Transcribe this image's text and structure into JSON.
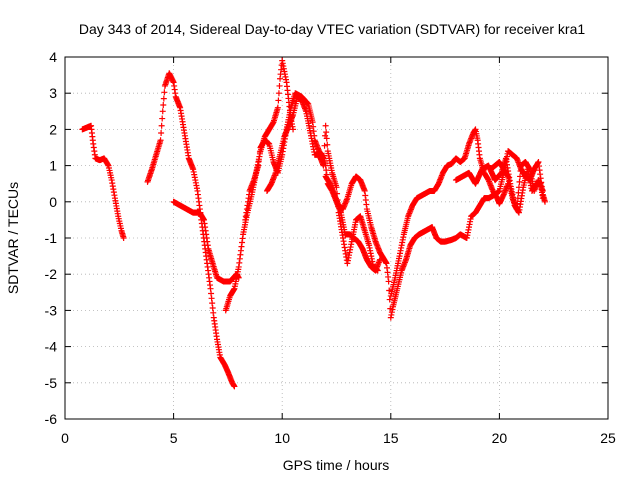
{
  "chart_data": {
    "type": "scatter",
    "title": "Day 343 of 2014, Sidereal Day-to-day VTEC variation (SDTVAR) for receiver kra1",
    "xlabel": "GPS time / hours",
    "ylabel": "SDTVAR / TECUs",
    "xlim": [
      0,
      25
    ],
    "ylim": [
      -6,
      4
    ],
    "xticks": [
      "0",
      "5",
      "10",
      "15",
      "20",
      "25"
    ],
    "yticks": [
      "-6",
      "-5",
      "-4",
      "-3",
      "-2",
      "-1",
      "0",
      "1",
      "2",
      "3",
      "4"
    ],
    "grid": true,
    "marker": "+",
    "color": "#ff0000",
    "series": [
      {
        "name": "SDTVAR",
        "segments": [
          [
            [
              0.8,
              2.0
            ],
            [
              1.0,
              2.05
            ],
            [
              1.2,
              2.1
            ],
            [
              1.3,
              1.6
            ],
            [
              1.4,
              1.2
            ],
            [
              1.6,
              1.15
            ],
            [
              1.8,
              1.2
            ],
            [
              2.0,
              1.0
            ],
            [
              2.15,
              0.6
            ],
            [
              2.3,
              0.1
            ],
            [
              2.45,
              -0.4
            ],
            [
              2.6,
              -0.8
            ],
            [
              2.7,
              -1.0
            ]
          ],
          [
            [
              3.8,
              0.55
            ],
            [
              4.0,
              0.9
            ],
            [
              4.2,
              1.3
            ],
            [
              4.4,
              1.7
            ],
            [
              4.5,
              2.5
            ],
            [
              4.6,
              3.2
            ],
            [
              4.8,
              3.55
            ],
            [
              5.0,
              3.3
            ],
            [
              5.1,
              2.9
            ],
            [
              5.3,
              2.6
            ],
            [
              5.5,
              1.9
            ],
            [
              5.7,
              1.2
            ],
            [
              5.9,
              0.9
            ],
            [
              6.1,
              0.3
            ],
            [
              6.3,
              -0.6
            ],
            [
              6.5,
              -1.5
            ],
            [
              6.7,
              -2.4
            ],
            [
              6.85,
              -3.2
            ],
            [
              7.0,
              -3.8
            ],
            [
              7.15,
              -4.3
            ],
            [
              7.35,
              -4.5
            ],
            [
              7.5,
              -4.7
            ],
            [
              7.7,
              -5.0
            ],
            [
              7.8,
              -5.1
            ]
          ],
          [
            [
              5.0,
              0.0
            ],
            [
              5.3,
              -0.1
            ],
            [
              5.6,
              -0.2
            ],
            [
              5.9,
              -0.3
            ],
            [
              6.2,
              -0.3
            ],
            [
              6.4,
              -0.5
            ],
            [
              6.6,
              -1.3
            ],
            [
              6.8,
              -1.7
            ],
            [
              7.0,
              -2.1
            ],
            [
              7.3,
              -2.2
            ],
            [
              7.6,
              -2.2
            ],
            [
              7.9,
              -2.0
            ],
            [
              8.0,
              -2.1
            ]
          ],
          [
            [
              7.4,
              -3.0
            ],
            [
              7.6,
              -2.6
            ],
            [
              7.8,
              -2.4
            ],
            [
              8.0,
              -1.8
            ],
            [
              8.2,
              -0.9
            ],
            [
              8.4,
              -0.3
            ],
            [
              8.6,
              0.2
            ],
            [
              8.8,
              0.8
            ],
            [
              9.0,
              1.4
            ],
            [
              9.2,
              1.8
            ],
            [
              9.4,
              2.0
            ],
            [
              9.6,
              2.2
            ],
            [
              9.8,
              2.6
            ],
            [
              9.9,
              3.4
            ],
            [
              10.0,
              3.9
            ],
            [
              10.2,
              3.3
            ],
            [
              10.4,
              2.3
            ],
            [
              10.5,
              2.0
            ]
          ],
          [
            [
              8.3,
              -0.5
            ],
            [
              8.5,
              0.3
            ],
            [
              8.7,
              0.6
            ],
            [
              8.9,
              1.0
            ],
            [
              9.0,
              1.5
            ],
            [
              9.2,
              1.7
            ],
            [
              9.4,
              1.6
            ],
            [
              9.6,
              1.1
            ],
            [
              9.8,
              0.8
            ],
            [
              10.0,
              1.3
            ],
            [
              10.2,
              2.0
            ],
            [
              10.4,
              2.6
            ],
            [
              10.6,
              3.0
            ],
            [
              10.9,
              2.9
            ],
            [
              11.2,
              2.7
            ],
            [
              11.4,
              2.2
            ],
            [
              11.5,
              1.7
            ],
            [
              11.7,
              1.4
            ],
            [
              11.9,
              1.2
            ],
            [
              12.0,
              1.0
            ],
            [
              12.1,
              0.5
            ],
            [
              12.3,
              0.3
            ],
            [
              12.5,
              0.0
            ],
            [
              12.7,
              -0.3
            ],
            [
              12.9,
              -0.9
            ],
            [
              13.1,
              -0.9
            ],
            [
              13.3,
              -1.0
            ],
            [
              13.5,
              -1.1
            ],
            [
              13.7,
              -1.3
            ],
            [
              13.9,
              -1.6
            ],
            [
              14.1,
              -1.8
            ],
            [
              14.3,
              -1.9
            ],
            [
              14.5,
              -1.6
            ]
          ],
          [
            [
              9.3,
              0.3
            ],
            [
              9.5,
              0.5
            ],
            [
              9.7,
              0.8
            ],
            [
              9.9,
              1.3
            ],
            [
              10.1,
              1.8
            ],
            [
              10.3,
              2.1
            ],
            [
              10.5,
              2.4
            ],
            [
              10.7,
              2.9
            ],
            [
              10.9,
              2.8
            ],
            [
              11.1,
              2.5
            ],
            [
              11.3,
              1.9
            ],
            [
              11.5,
              1.3
            ],
            [
              11.7,
              1.3
            ],
            [
              11.9,
              1.0
            ],
            [
              12.0,
              2.1
            ],
            [
              12.1,
              1.4
            ],
            [
              12.3,
              0.8
            ],
            [
              12.5,
              0.4
            ],
            [
              12.6,
              -0.3
            ],
            [
              12.8,
              -1.0
            ],
            [
              13.0,
              -1.7
            ],
            [
              13.2,
              -1.1
            ],
            [
              13.4,
              -0.5
            ],
            [
              13.6,
              -0.4
            ],
            [
              13.8,
              -0.8
            ],
            [
              14.0,
              -1.2
            ],
            [
              14.2,
              -1.8
            ],
            [
              14.4,
              -1.9
            ]
          ],
          [
            [
              12.0,
              0.7
            ],
            [
              12.2,
              0.5
            ],
            [
              12.4,
              0.2
            ],
            [
              12.6,
              -0.1
            ],
            [
              12.8,
              -0.2
            ],
            [
              13.0,
              0.1
            ],
            [
              13.2,
              0.5
            ],
            [
              13.4,
              0.7
            ],
            [
              13.6,
              0.6
            ],
            [
              13.8,
              0.3
            ],
            [
              13.9,
              -0.2
            ],
            [
              14.1,
              -0.7
            ],
            [
              14.3,
              -1.1
            ],
            [
              14.5,
              -1.4
            ],
            [
              14.6,
              -1.5
            ],
            [
              14.8,
              -1.7
            ],
            [
              14.9,
              -2.2
            ],
            [
              15.0,
              -3.2
            ],
            [
              15.1,
              -2.9
            ],
            [
              15.3,
              -2.4
            ],
            [
              15.5,
              -1.9
            ],
            [
              15.7,
              -1.6
            ],
            [
              15.9,
              -1.2
            ],
            [
              16.1,
              -1.0
            ],
            [
              16.3,
              -0.9
            ],
            [
              16.6,
              -0.8
            ],
            [
              16.9,
              -0.7
            ]
          ],
          [
            [
              15.0,
              -2.6
            ],
            [
              15.2,
              -2.1
            ],
            [
              15.4,
              -1.5
            ],
            [
              15.6,
              -0.9
            ],
            [
              15.8,
              -0.4
            ],
            [
              16.0,
              -0.1
            ],
            [
              16.2,
              0.1
            ],
            [
              16.5,
              0.2
            ],
            [
              16.8,
              0.3
            ],
            [
              17.0,
              0.3
            ],
            [
              17.2,
              0.5
            ],
            [
              17.4,
              0.8
            ],
            [
              17.6,
              1.0
            ],
            [
              17.8,
              1.05
            ],
            [
              18.0,
              1.2
            ],
            [
              18.2,
              1.1
            ],
            [
              18.4,
              1.2
            ],
            [
              18.6,
              1.6
            ],
            [
              18.8,
              1.9
            ],
            [
              18.9,
              2.0
            ],
            [
              19.0,
              1.7
            ],
            [
              19.1,
              1.2
            ],
            [
              19.3,
              0.8
            ],
            [
              19.5,
              0.6
            ],
            [
              19.7,
              0.3
            ],
            [
              19.9,
              0.1
            ],
            [
              20.0,
              -0.05
            ],
            [
              20.2,
              0.2
            ],
            [
              20.4,
              0.5
            ]
          ],
          [
            [
              16.9,
              -0.7
            ],
            [
              17.1,
              -1.0
            ],
            [
              17.3,
              -1.1
            ],
            [
              17.5,
              -1.1
            ],
            [
              17.8,
              -1.05
            ],
            [
              18.0,
              -1.0
            ],
            [
              18.2,
              -0.9
            ],
            [
              18.5,
              -1.0
            ],
            [
              18.7,
              -0.4
            ],
            [
              18.9,
              -0.3
            ],
            [
              19.1,
              -0.1
            ],
            [
              19.3,
              0.1
            ],
            [
              19.5,
              0.1
            ],
            [
              19.8,
              0.2
            ],
            [
              20.0,
              0.3
            ],
            [
              20.2,
              0.8
            ],
            [
              20.4,
              1.4
            ],
            [
              20.6,
              1.3
            ],
            [
              20.8,
              1.2
            ],
            [
              21.0,
              0.9
            ],
            [
              21.2,
              0.7
            ],
            [
              21.4,
              0.6
            ],
            [
              21.6,
              0.9
            ],
            [
              21.8,
              1.1
            ],
            [
              22.0,
              0.2
            ],
            [
              22.1,
              0.0
            ]
          ],
          [
            [
              18.0,
              0.6
            ],
            [
              18.3,
              0.7
            ],
            [
              18.6,
              0.8
            ],
            [
              18.9,
              0.5
            ],
            [
              19.2,
              0.9
            ],
            [
              19.5,
              1.0
            ],
            [
              19.8,
              0.6
            ],
            [
              20.1,
              0.8
            ],
            [
              20.3,
              1.2
            ],
            [
              20.5,
              0.5
            ],
            [
              20.7,
              -0.1
            ],
            [
              20.9,
              -0.3
            ],
            [
              21.1,
              0.4
            ],
            [
              21.3,
              0.9
            ],
            [
              21.5,
              0.3
            ],
            [
              21.7,
              0.5
            ],
            [
              21.9,
              0.5
            ],
            [
              22.0,
              0.1
            ]
          ],
          [
            [
              19.6,
              0.9
            ],
            [
              19.8,
              1.0
            ],
            [
              20.0,
              1.1
            ],
            [
              20.2,
              0.9
            ],
            [
              20.4,
              0.7
            ],
            [
              20.6,
              0.1
            ],
            [
              20.8,
              -0.2
            ],
            [
              21.0,
              1.0
            ],
            [
              21.2,
              1.1
            ],
            [
              21.4,
              0.9
            ],
            [
              21.6,
              0.3
            ],
            [
              21.8,
              0.6
            ],
            [
              22.0,
              0.3
            ]
          ]
        ]
      }
    ]
  }
}
